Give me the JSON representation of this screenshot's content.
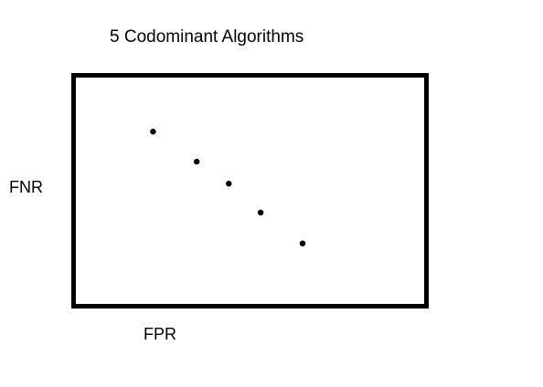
{
  "chart_data": {
    "type": "scatter",
    "title": "5 Codominant Algorithms",
    "xlabel": "FPR",
    "ylabel": "FNR",
    "xlim": [
      0,
      100
    ],
    "ylim": [
      0,
      100
    ],
    "grid": false,
    "legend": "none",
    "series": [
      {
        "points": [
          {
            "x": 22.5,
            "y": 75.6
          },
          {
            "x": 34.9,
            "y": 62.6
          },
          {
            "x": 44.0,
            "y": 53.1
          },
          {
            "x": 53.0,
            "y": 40.6
          },
          {
            "x": 64.9,
            "y": 27.2
          }
        ]
      }
    ],
    "colors": {
      "frame": "#000000",
      "marker": "#000000",
      "text": "#000000"
    }
  }
}
